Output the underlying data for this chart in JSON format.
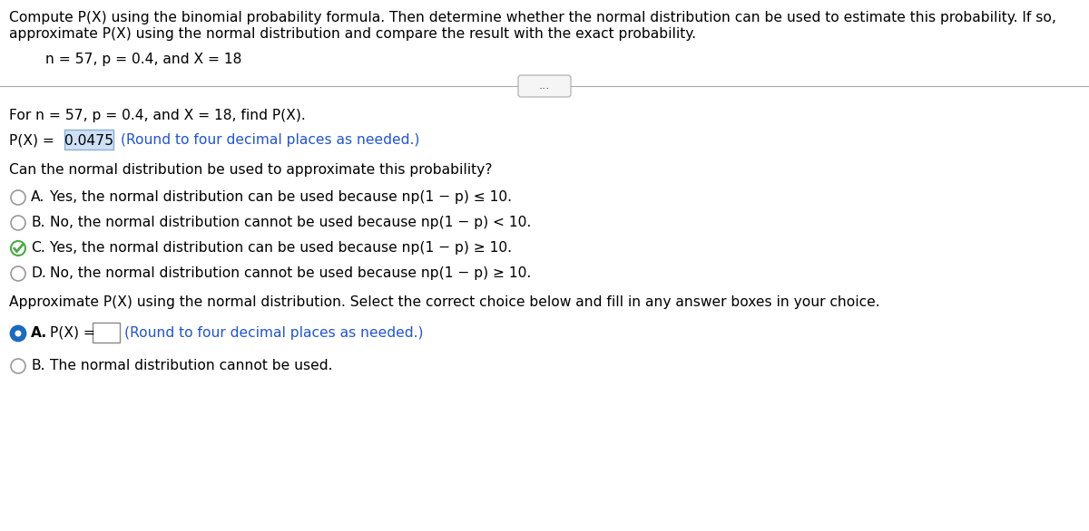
{
  "bg_color": "#ffffff",
  "top_text_line1": "Compute P(X) using the binomial probability formula. Then determine whether the normal distribution can be used to estimate this probability. If so,",
  "top_text_line2": "approximate P(X) using the normal distribution and compare the result with the exact probability.",
  "params_text": "n = 57, p = 0.4, and X = 18",
  "dots_text": "...",
  "section1_text": "For n = 57, p = 0.4, and X = 18, find P(X).",
  "px_label": "P(X) = ",
  "px_value": "0.0475",
  "px_hint": " (Round to four decimal places as needed.)",
  "can_normal_text": "Can the normal distribution be used to approximate this probability?",
  "option_A_text": "Yes, the normal distribution can be used because np(1 − p) ≤ 10.",
  "option_B_text": "No, the normal distribution cannot be used because np(1 − p) < 10.",
  "option_C_text": "Yes, the normal distribution can be used because np(1 − p) ≥ 10.",
  "option_D_text": "No, the normal distribution cannot be used because np(1 − p) ≥ 10.",
  "approx_text": "Approximate P(X) using the normal distribution. Select the correct choice below and fill in any answer boxes in your choice.",
  "approx_A_label": "A.",
  "approx_A_text": "P(X) = ",
  "approx_A_hint": "(Round to four decimal places as needed.)",
  "approx_B_text": "The normal distribution cannot be used.",
  "text_color": "#000000",
  "hint_color": "#2255cc",
  "highlight_bg": "#cfe0f5",
  "highlight_border": "#8aaed6",
  "separator_color": "#aaaaaa",
  "radio_unsel_color": "#999999",
  "radio_sel_color": "#1a6bbf",
  "check_color": "#4aaa44",
  "check_border": "#4aaa44",
  "bold_A": true,
  "font_size": 11.2,
  "small_font_size": 9.5
}
